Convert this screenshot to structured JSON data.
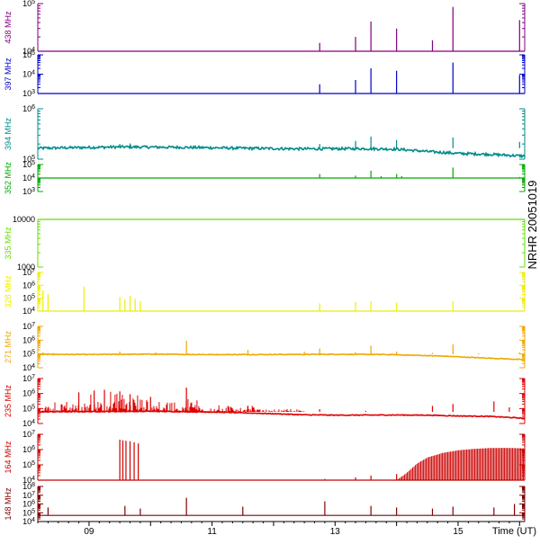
{
  "chart_data": {
    "type": "line",
    "side_label": "NRHR 20051019",
    "x_axis": {
      "label": "Time (UT)",
      "range": [
        "08:10",
        "16:05"
      ],
      "ticks": [
        "09",
        "11",
        "13",
        "15"
      ]
    },
    "panels": [
      {
        "name": "438 MHz",
        "color": "#800080",
        "scale": "log",
        "ylim": [
          10000,
          100000
        ],
        "tick_labels": [
          "10^5",
          "10^4"
        ],
        "baseline": 10000,
        "spikes": [
          [
            "12:45",
            15000
          ],
          [
            "13:20",
            20000
          ],
          [
            "13:35",
            42000
          ],
          [
            "14:00",
            30000
          ],
          [
            "14:35",
            17000
          ],
          [
            "14:55",
            85000
          ],
          [
            "16:00",
            45000
          ]
        ]
      },
      {
        "name": "397 MHz",
        "color": "#0000cc",
        "scale": "log",
        "ylim": [
          1000,
          100000
        ],
        "tick_labels": [
          "10^5",
          "10^4",
          "10^3"
        ],
        "baseline": 1000,
        "spikes": [
          [
            "12:45",
            3000
          ],
          [
            "13:20",
            5000
          ],
          [
            "13:35",
            20000
          ],
          [
            "14:00",
            15000
          ],
          [
            "14:55",
            40000
          ],
          [
            "16:00",
            9000
          ]
        ]
      },
      {
        "name": "394 MHz",
        "color": "#008b8b",
        "scale": "log",
        "ylim": [
          100000,
          1000000
        ],
        "tick_labels": [
          "10^6",
          "10^5"
        ],
        "series": [
          [
            "08:10",
            165000
          ],
          [
            "09:30",
            175000
          ],
          [
            "10:30",
            172000
          ],
          [
            "11:30",
            165000
          ],
          [
            "12:30",
            160000
          ],
          [
            "13:30",
            162000
          ],
          [
            "14:00",
            158000
          ],
          [
            "14:30",
            142000
          ],
          [
            "15:00",
            130000
          ],
          [
            "15:30",
            125000
          ],
          [
            "16:05",
            115000
          ]
        ],
        "spikes": [
          [
            "09:30",
            200000
          ],
          [
            "09:40",
            205000
          ],
          [
            "12:45",
            200000
          ],
          [
            "13:20",
            230000
          ],
          [
            "13:35",
            280000
          ],
          [
            "14:00",
            240000
          ],
          [
            "14:55",
            270000
          ],
          [
            "16:00",
            220000
          ]
        ]
      },
      {
        "name": "352 MHz",
        "color": "#00aa00",
        "scale": "log",
        "ylim": [
          1000,
          100000
        ],
        "tick_labels": [
          "10^5",
          "10^4",
          "10^3"
        ],
        "baseline": 10000,
        "spikes": [
          [
            "12:45",
            20000
          ],
          [
            "13:20",
            15000
          ],
          [
            "13:35",
            35000
          ],
          [
            "13:45",
            14000
          ],
          [
            "14:00",
            20000
          ],
          [
            "14:05",
            14000
          ],
          [
            "14:55",
            60000
          ],
          [
            "16:00",
            12000
          ]
        ]
      },
      {
        "name": "335 MHz",
        "color": "#66dd00",
        "scale": "log",
        "ylim": [
          1000,
          10000
        ],
        "tick_labels": [
          "10000",
          "1000"
        ],
        "baseline": 10000
      },
      {
        "name": "328 MHz",
        "color": "#eeee00",
        "scale": "log",
        "ylim": [
          10000,
          10000000
        ],
        "tick_labels": [
          "10^7",
          "10^6",
          "10^5",
          "10^4"
        ],
        "baseline": 10000,
        "spikes": [
          [
            "08:15",
            400000
          ],
          [
            "08:20",
            200000
          ],
          [
            "08:55",
            800000
          ],
          [
            "09:30",
            120000
          ],
          [
            "09:35",
            80000
          ],
          [
            "09:40",
            150000
          ],
          [
            "09:45",
            90000
          ],
          [
            "09:50",
            60000
          ],
          [
            "12:45",
            40000
          ],
          [
            "13:20",
            50000
          ],
          [
            "13:35",
            60000
          ],
          [
            "14:00",
            45000
          ],
          [
            "14:55",
            60000
          ]
        ]
      },
      {
        "name": "271 MHz",
        "color": "#f0a800",
        "scale": "log",
        "ylim": [
          10000,
          10000000
        ],
        "tick_labels": [
          "10^7",
          "10^6",
          "10^5",
          "10^4"
        ],
        "series": [
          [
            "08:10",
            95000
          ],
          [
            "09:00",
            92000
          ],
          [
            "10:00",
            97000
          ],
          [
            "11:00",
            90000
          ],
          [
            "12:00",
            92000
          ],
          [
            "13:00",
            95000
          ],
          [
            "13:45",
            92000
          ],
          [
            "14:15",
            82000
          ],
          [
            "14:45",
            70000
          ],
          [
            "15:15",
            55000
          ],
          [
            "15:45",
            45000
          ],
          [
            "16:05",
            38000
          ]
        ],
        "spikes": [
          [
            "08:15",
            130000
          ],
          [
            "08:25",
            120000
          ],
          [
            "09:30",
            150000
          ],
          [
            "10:05",
            130000
          ],
          [
            "10:35",
            900000
          ],
          [
            "11:35",
            200000
          ],
          [
            "12:30",
            150000
          ],
          [
            "12:45",
            250000
          ],
          [
            "13:20",
            130000
          ],
          [
            "13:35",
            400000
          ],
          [
            "14:00",
            150000
          ],
          [
            "14:35",
            120000
          ],
          [
            "14:55",
            500000
          ],
          [
            "15:20",
            110000
          ],
          [
            "16:00",
            130000
          ]
        ]
      },
      {
        "name": "235 MHz",
        "color": "#dd0000",
        "scale": "log",
        "ylim": [
          10000,
          10000000
        ],
        "tick_labels": [
          "10^7",
          "10^6",
          "10^5",
          "10^4"
        ],
        "series": [
          [
            "08:10",
            60000
          ],
          [
            "09:00",
            62000
          ],
          [
            "10:00",
            65000
          ],
          [
            "11:00",
            58000
          ],
          [
            "12:00",
            45000
          ],
          [
            "12:30",
            38000
          ],
          [
            "13:00",
            36000
          ],
          [
            "14:00",
            37000
          ],
          [
            "14:30",
            36000
          ],
          [
            "15:00",
            32000
          ],
          [
            "15:30",
            30000
          ],
          [
            "16:05",
            22000
          ]
        ],
        "bursts": [
          [
            "08:10",
            "09:00",
            400000
          ],
          [
            "09:00",
            "09:50",
            2000000
          ],
          [
            "09:50",
            "10:50",
            700000
          ],
          [
            "10:50",
            "11:45",
            200000
          ],
          [
            "11:45",
            "12:30",
            100000
          ]
        ],
        "spikes": [
          [
            "08:50",
            1200000
          ],
          [
            "09:05",
            1600000
          ],
          [
            "09:15",
            1800000
          ],
          [
            "09:30",
            1400000
          ],
          [
            "09:40",
            900000
          ],
          [
            "10:00",
            600000
          ],
          [
            "10:35",
            2500000
          ],
          [
            "11:35",
            150000
          ],
          [
            "12:45",
            90000
          ],
          [
            "13:30",
            70000
          ],
          [
            "14:35",
            150000
          ],
          [
            "14:55",
            200000
          ],
          [
            "15:35",
            300000
          ],
          [
            "15:50",
            120000
          ]
        ]
      },
      {
        "name": "164 MHz",
        "color": "#cc0000",
        "scale": "log",
        "ylim": [
          10000,
          10000000
        ],
        "tick_labels": [
          "10^7",
          "10^6",
          "10^5",
          "10^4"
        ],
        "baseline": 10000,
        "spikes": [
          [
            "09:30",
            4500000
          ],
          [
            "09:33",
            4000000
          ],
          [
            "09:36",
            3800000
          ],
          [
            "09:40",
            3500000
          ],
          [
            "09:44",
            3000000
          ],
          [
            "09:48",
            2500000
          ],
          [
            "12:50",
            12000
          ],
          [
            "13:20",
            15000
          ],
          [
            "13:35",
            20000
          ],
          [
            "14:00",
            25000
          ]
        ],
        "envelope": [
          [
            "14:00",
            10000
          ],
          [
            "14:10",
            30000
          ],
          [
            "14:20",
            120000
          ],
          [
            "14:30",
            300000
          ],
          [
            "14:45",
            600000
          ],
          [
            "15:00",
            900000
          ],
          [
            "15:15",
            1100000
          ],
          [
            "15:30",
            1250000
          ],
          [
            "15:45",
            1300000
          ],
          [
            "16:05",
            1200000
          ]
        ]
      },
      {
        "name": "148 MHz",
        "color": "#800000",
        "scale": "log",
        "ylim": [
          10000,
          100000000
        ],
        "tick_labels": [
          "10^8",
          "10^7",
          "10^6",
          "10^5",
          "10^4"
        ],
        "baseline": 50000,
        "spikes": [
          [
            "08:20",
            400000
          ],
          [
            "09:35",
            600000
          ],
          [
            "09:50",
            300000
          ],
          [
            "10:35",
            5000000
          ],
          [
            "11:30",
            500000
          ],
          [
            "12:50",
            2000000
          ],
          [
            "13:35",
            600000
          ],
          [
            "14:00",
            400000
          ],
          [
            "14:35",
            300000
          ],
          [
            "14:55",
            500000
          ],
          [
            "15:35",
            400000
          ],
          [
            "15:55",
            1000000
          ]
        ]
      }
    ]
  }
}
